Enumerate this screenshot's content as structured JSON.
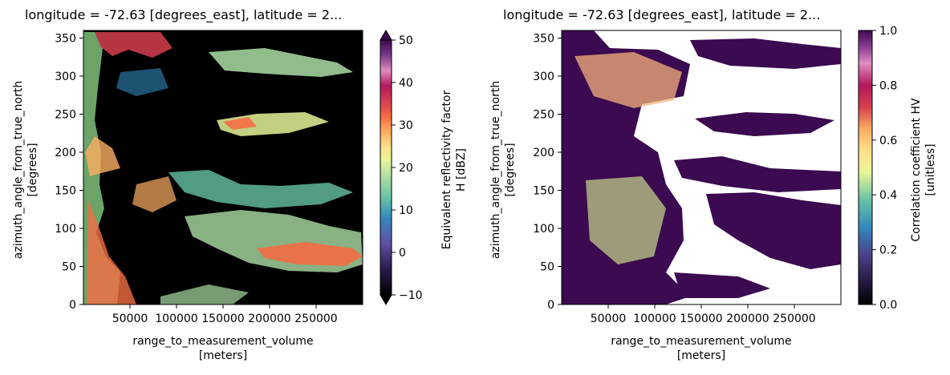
{
  "chart_data": [
    {
      "type": "heatmap",
      "title": "longitude = -72.63 [degrees_east], latitude = 2...",
      "xlabel": "range_to_measurement_volume",
      "xunit": "[meters]",
      "ylabel": "azimuth_angle_from_true_north",
      "yunit": "[degrees]",
      "xlim": [
        0,
        300000
      ],
      "ylim": [
        0,
        360
      ],
      "xticks": [
        50000,
        100000,
        150000,
        200000,
        250000
      ],
      "xtick_labels": [
        "50000",
        "100000",
        "150000",
        "200000",
        "250000"
      ],
      "yticks": [
        0,
        50,
        100,
        150,
        200,
        250,
        300,
        350
      ],
      "ytick_labels": [
        "0",
        "50",
        "100",
        "150",
        "200",
        "250",
        "300",
        "350"
      ],
      "colorbar": {
        "label": "Equivalent reflectivity factor",
        "unit": "H [dBZ]",
        "range": [
          -10,
          50
        ],
        "ticks": [
          -10,
          0,
          10,
          20,
          30,
          40,
          50
        ],
        "tick_labels": [
          "−10",
          "0",
          "10",
          "20",
          "30",
          "40",
          "50"
        ],
        "extend": "both",
        "colormap": "Spectral (reversed), black at low end"
      },
      "background": "#000000"
    },
    {
      "type": "heatmap",
      "title": "longitude = -72.63 [degrees_east], latitude = 2...",
      "xlabel": "range_to_measurement_volume",
      "xunit": "[meters]",
      "ylabel": "azimuth_angle_from_true_north",
      "yunit": "[degrees]",
      "xlim": [
        0,
        300000
      ],
      "ylim": [
        0,
        360
      ],
      "xticks": [
        50000,
        100000,
        150000,
        200000,
        250000
      ],
      "xtick_labels": [
        "50000",
        "100000",
        "150000",
        "200000",
        "250000"
      ],
      "yticks": [
        0,
        50,
        100,
        150,
        200,
        250,
        300,
        350
      ],
      "ytick_labels": [
        "0",
        "50",
        "100",
        "150",
        "200",
        "250",
        "300",
        "350"
      ],
      "colorbar": {
        "label": "Correlation coefficient HV",
        "unit": "[unitless]",
        "range": [
          0.0,
          1.0
        ],
        "ticks": [
          0.0,
          0.2,
          0.4,
          0.6,
          0.8,
          1.0
        ],
        "tick_labels": [
          "0.0",
          "0.2",
          "0.4",
          "0.6",
          "0.8",
          "1.0"
        ],
        "extend": "neither",
        "colormap": "Spectral (reversed) with dark purple high end"
      },
      "background": "#ffffff"
    }
  ]
}
